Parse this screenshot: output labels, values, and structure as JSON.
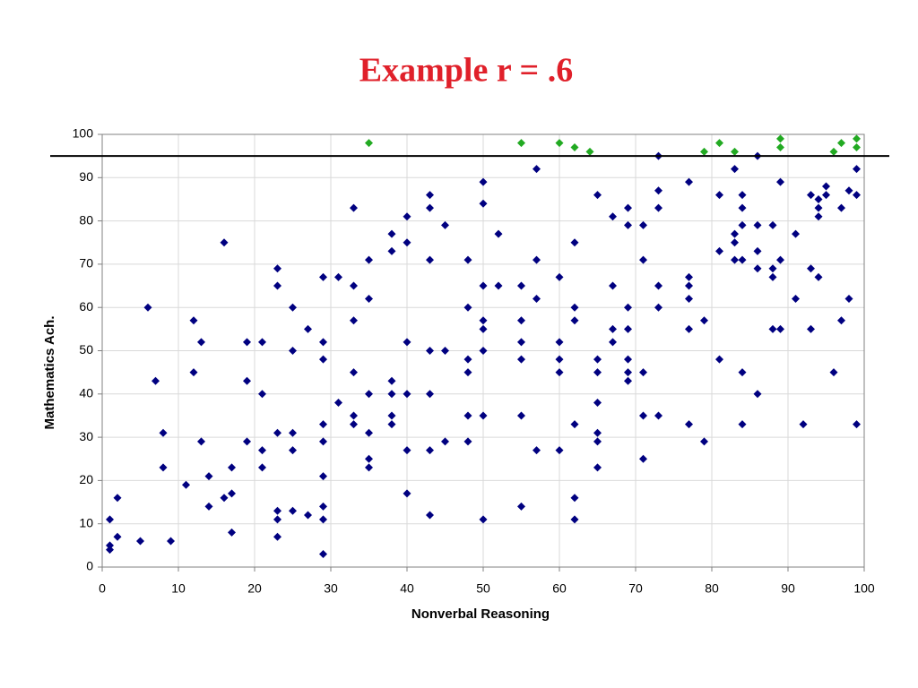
{
  "chart_data": {
    "type": "scatter",
    "title": "Example r = .6",
    "x_label": "Nonverbal Reasoning",
    "y_label": "Mathematics Ach.",
    "xlim": [
      0,
      100
    ],
    "xticks": [
      0,
      10,
      20,
      30,
      40,
      50,
      60,
      70,
      80,
      90,
      100
    ],
    "ylim": [
      0,
      100
    ],
    "yticks": [
      0,
      10,
      20,
      30,
      40,
      50,
      60,
      70,
      80,
      90,
      100
    ],
    "grid": true,
    "reference_line": 95,
    "series": [
      {
        "color": "#000080",
        "x": [
          1,
          1,
          1,
          2,
          2,
          5,
          6,
          7,
          8,
          8,
          9,
          11,
          12,
          12,
          13,
          13,
          14,
          14,
          16,
          16,
          17,
          17,
          17,
          19,
          19,
          19,
          21,
          21,
          21,
          21,
          23,
          23,
          23,
          23,
          23,
          23,
          25,
          25,
          25,
          25,
          25,
          27,
          27,
          29,
          29,
          29,
          29,
          29,
          29,
          29,
          29,
          29,
          31,
          31,
          33,
          33,
          33,
          33,
          33,
          33,
          35,
          35,
          35,
          35,
          35,
          35,
          38,
          38,
          38,
          38,
          38,
          38,
          40,
          40,
          40,
          40,
          40,
          40,
          43,
          43,
          43,
          43,
          43,
          43,
          43,
          45,
          45,
          45,
          48,
          48,
          48,
          48,
          48,
          48,
          50,
          50,
          50,
          50,
          50,
          50,
          50,
          50,
          52,
          52,
          55,
          55,
          55,
          55,
          55,
          55,
          57,
          57,
          57,
          57,
          60,
          60,
          60,
          60,
          60,
          62,
          62,
          62,
          62,
          62,
          62,
          65,
          65,
          65,
          65,
          65,
          65,
          65,
          67,
          67,
          67,
          67,
          69,
          69,
          69,
          69,
          69,
          69,
          69,
          71,
          71,
          71,
          71,
          71,
          73,
          73,
          73,
          73,
          73,
          73,
          77,
          77,
          77,
          77,
          77,
          77,
          79,
          79,
          81,
          81,
          81,
          83,
          83,
          83,
          83,
          84,
          84,
          84,
          84,
          84,
          84,
          86,
          86,
          86,
          86,
          86,
          88,
          88,
          88,
          88,
          89,
          89,
          89,
          91,
          91,
          92,
          93,
          93,
          93,
          94,
          94,
          94,
          94,
          95,
          95,
          96,
          97,
          97,
          98,
          98,
          99,
          99,
          99
        ],
        "values": [
          11,
          5,
          4,
          16,
          7,
          6,
          60,
          43,
          31,
          23,
          6,
          19,
          57,
          45,
          52,
          29,
          21,
          14,
          75,
          16,
          23,
          17,
          8,
          52,
          43,
          29,
          52,
          40,
          27,
          23,
          69,
          65,
          31,
          13,
          11,
          7,
          60,
          50,
          31,
          27,
          13,
          55,
          12,
          67,
          52,
          48,
          33,
          29,
          21,
          14,
          11,
          3,
          67,
          38,
          83,
          65,
          57,
          45,
          35,
          33,
          71,
          62,
          40,
          31,
          25,
          23,
          77,
          73,
          43,
          40,
          35,
          33,
          81,
          75,
          52,
          40,
          27,
          17,
          86,
          83,
          71,
          50,
          40,
          27,
          12,
          79,
          50,
          29,
          71,
          60,
          48,
          45,
          35,
          29,
          89,
          84,
          65,
          57,
          55,
          50,
          35,
          11,
          77,
          65,
          65,
          57,
          52,
          48,
          35,
          14,
          92,
          71,
          62,
          27,
          67,
          52,
          48,
          45,
          27,
          75,
          60,
          57,
          33,
          16,
          11,
          86,
          48,
          45,
          38,
          31,
          29,
          23,
          81,
          65,
          55,
          52,
          83,
          79,
          60,
          55,
          48,
          45,
          43,
          79,
          71,
          45,
          35,
          25,
          95,
          87,
          83,
          65,
          60,
          35,
          89,
          67,
          65,
          62,
          55,
          33,
          57,
          29,
          86,
          73,
          48,
          92,
          77,
          75,
          71,
          86,
          83,
          79,
          71,
          45,
          33,
          95,
          79,
          73,
          69,
          40,
          79,
          69,
          67,
          55,
          89,
          71,
          55,
          77,
          62,
          33,
          86,
          69,
          55,
          85,
          83,
          81,
          67,
          88,
          86,
          45,
          83,
          57,
          87,
          62,
          92,
          86,
          33
        ]
      },
      {
        "color": "#22aa22",
        "x": [
          35,
          55,
          60,
          62,
          64,
          79,
          81,
          83,
          89,
          89,
          96,
          97,
          99,
          99
        ],
        "values": [
          98,
          98,
          98,
          97,
          96,
          96,
          98,
          96,
          99,
          97,
          96,
          98,
          99,
          97
        ]
      }
    ]
  }
}
